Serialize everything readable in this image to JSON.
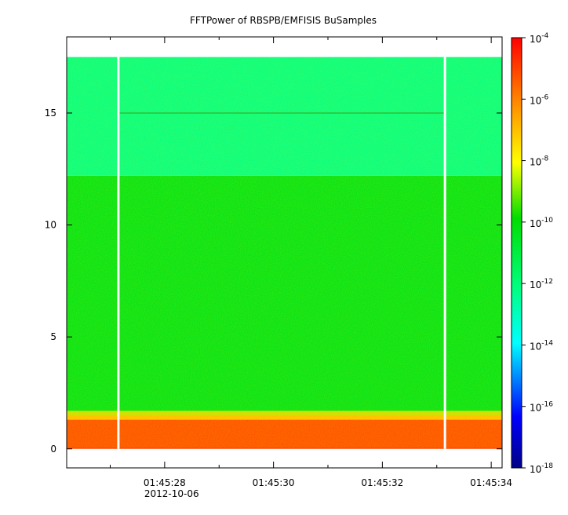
{
  "chart_data": {
    "type": "heatmap",
    "title": "FFTPower of RBSPB/EMFISIS  BuSamples",
    "xlabel": "",
    "ylabel": "",
    "x_ticks": [
      {
        "t": "01:45:28",
        "sub": "2012-10-06"
      },
      {
        "t": "01:45:30",
        "sub": ""
      },
      {
        "t": "01:45:32",
        "sub": ""
      },
      {
        "t": "01:45:34",
        "sub": ""
      }
    ],
    "x_minor_tick_seconds": [
      "01:45:27",
      "01:45:29",
      "01:45:31",
      "01:45:33"
    ],
    "xlim_seconds": [
      26.2,
      34.2
    ],
    "y_ticks": [
      "0",
      "5",
      "10",
      "15"
    ],
    "ylim": [
      -0.85,
      18.4
    ],
    "y_data_max": 17.5,
    "gaps_seconds": [
      27.15,
      33.15
    ],
    "colorbar": {
      "scale": "log",
      "range": [
        -18,
        -4
      ],
      "tick_base": "10",
      "tick_exponents": [
        "-4",
        "-6",
        "-8",
        "-10",
        "-12",
        "-14",
        "-16",
        "-18"
      ],
      "colors": [
        "#0000a0",
        "#0000ff",
        "#00ffff",
        "#00ff80",
        "#00dd00",
        "#ffff00",
        "#ff8000",
        "#ff0000"
      ]
    },
    "bands": [
      {
        "y": [
          0,
          1.5
        ],
        "log_power": -5.2,
        "desc_color": "#ff4400"
      },
      {
        "y": [
          1.5,
          12.2
        ],
        "log_power": -10.3,
        "desc_color": "#44ee22"
      },
      {
        "y": [
          12.2,
          17.5
        ],
        "log_power": -12.2,
        "desc_color": "#00ff66"
      }
    ],
    "line_feature_y": 15
  }
}
